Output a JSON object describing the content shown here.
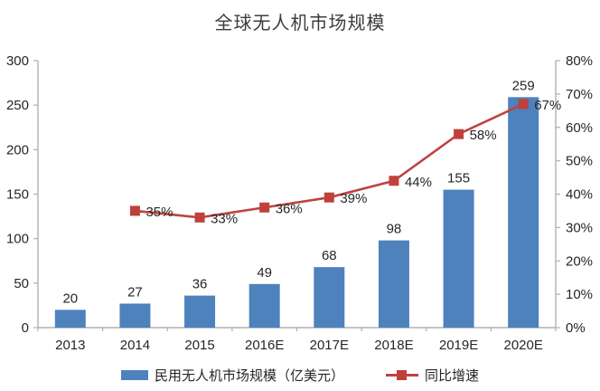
{
  "title": "全球无人机市场规模",
  "colors": {
    "bar": "#4d82bc",
    "line": "#bf4340",
    "marker": "#c0403a",
    "axis": "#b0b0b0",
    "text": "#262626"
  },
  "chart_data": {
    "type": "bar+line combo",
    "title": "全球无人机市场规模",
    "categories": [
      "2013",
      "2014",
      "2015",
      "2016E",
      "2017E",
      "2018E",
      "2019E",
      "2020E"
    ],
    "series": [
      {
        "name": "民用无人机市场规模（亿美元）",
        "type": "bar",
        "axis": "left",
        "values": [
          20,
          27,
          36,
          49,
          68,
          98,
          155,
          259
        ],
        "data_labels": [
          "20",
          "27",
          "36",
          "49",
          "68",
          "98",
          "155",
          "259"
        ]
      },
      {
        "name": "同比增速",
        "type": "line",
        "axis": "right",
        "values": [
          null,
          35,
          33,
          36,
          39,
          44,
          58,
          67
        ],
        "data_labels": [
          null,
          "35%",
          "33%",
          "36%",
          "39%",
          "44%",
          "58%",
          "67%"
        ]
      }
    ],
    "left_axis": {
      "min": 0,
      "max": 300,
      "step": 50,
      "ticks": [
        "0",
        "50",
        "100",
        "150",
        "200",
        "250",
        "300"
      ]
    },
    "right_axis": {
      "min": 0,
      "max": 80,
      "step": 10,
      "ticks": [
        "0%",
        "10%",
        "20%",
        "30%",
        "40%",
        "50%",
        "60%",
        "70%",
        "80%"
      ]
    },
    "grid": false,
    "legend_position": "bottom"
  },
  "legend": {
    "bar_label": "民用无人机市场规模（亿美元）",
    "line_label": "同比增速"
  }
}
